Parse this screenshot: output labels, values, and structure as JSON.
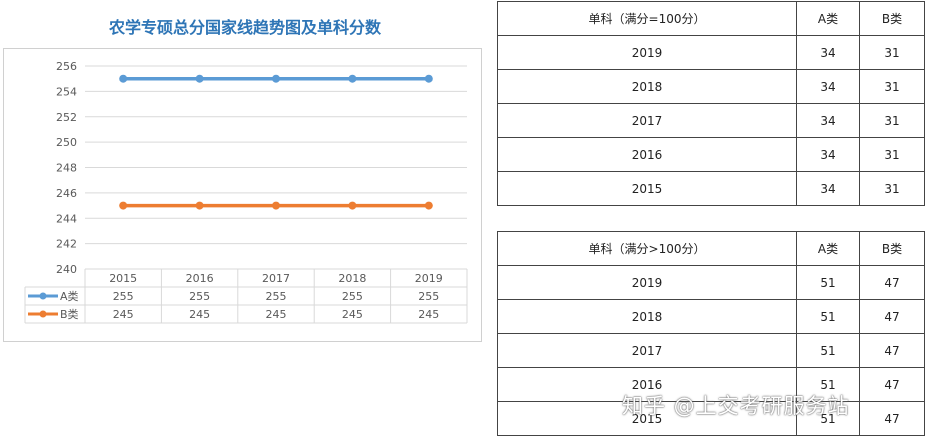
{
  "chart_data": {
    "type": "line",
    "title": "农学专硕总分国家线趋势图及单科分数",
    "categories": [
      "2015",
      "2016",
      "2017",
      "2018",
      "2019"
    ],
    "series": [
      {
        "name": "A类",
        "values": [
          255,
          255,
          255,
          255,
          255
        ],
        "color": "#5b9bd5"
      },
      {
        "name": "B类",
        "values": [
          245,
          245,
          245,
          245,
          245
        ],
        "color": "#ed7d31"
      }
    ],
    "ylim": [
      240,
      256
    ],
    "yticks": [
      240,
      242,
      244,
      246,
      248,
      250,
      252,
      254,
      256
    ],
    "grid": true,
    "legend": "data-table-below"
  },
  "tables": [
    {
      "headers": [
        "单科（满分=100分）",
        "A类",
        "B类"
      ],
      "rows": [
        [
          "2019",
          "34",
          "31"
        ],
        [
          "2018",
          "34",
          "31"
        ],
        [
          "2017",
          "34",
          "31"
        ],
        [
          "2016",
          "34",
          "31"
        ],
        [
          "2015",
          "34",
          "31"
        ]
      ]
    },
    {
      "headers": [
        "单科（满分>100分）",
        "A类",
        "B类"
      ],
      "rows": [
        [
          "2019",
          "51",
          "47"
        ],
        [
          "2018",
          "51",
          "47"
        ],
        [
          "2017",
          "51",
          "47"
        ],
        [
          "2016",
          "51",
          "47"
        ],
        [
          "2015",
          "51",
          "47"
        ]
      ]
    }
  ],
  "watermark": "知乎 @上交考研服务站"
}
